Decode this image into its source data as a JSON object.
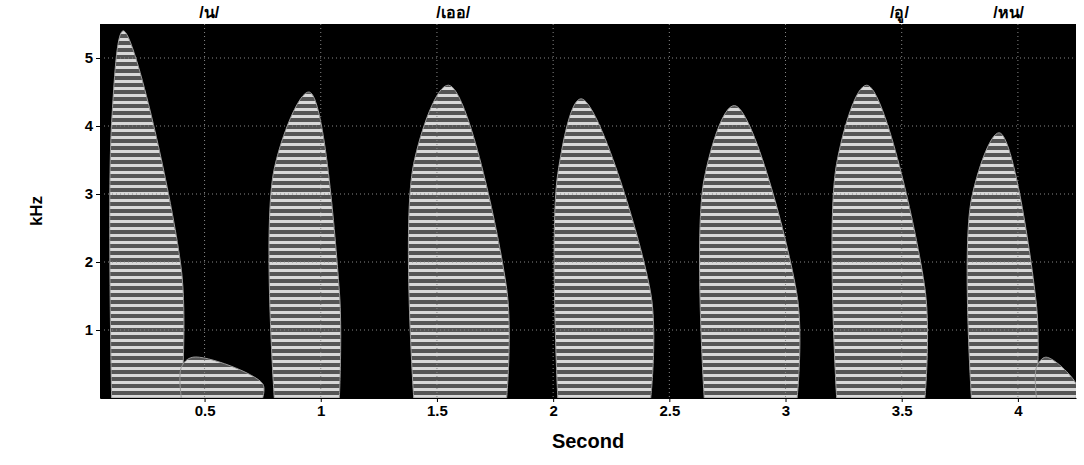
{
  "chart_data": {
    "type": "spectrogram",
    "x_label": "Second",
    "y_label": "kHz",
    "xlim": [
      0.05,
      4.25
    ],
    "ylim": [
      0,
      5.5
    ],
    "xticks": [
      0.5,
      1,
      1.5,
      2,
      2.5,
      3,
      3.5,
      4
    ],
    "yticks": [
      1,
      2,
      3,
      4,
      5
    ],
    "grid": true,
    "annotations": [
      {
        "text": "/น/",
        "x": 0.52
      },
      {
        "text": "/เออ/",
        "x": 1.57
      },
      {
        "text": "/อู/",
        "x": 3.49
      },
      {
        "text": "/หน/",
        "x": 3.96
      }
    ],
    "segments": [
      {
        "start": 0.1,
        "peak": 0.15,
        "end": 0.4,
        "top": 5.4
      },
      {
        "start": 0.4,
        "peak": 0.45,
        "end": 0.75,
        "top": 0.6
      },
      {
        "start": 0.8,
        "peak": 0.95,
        "end": 1.08,
        "top": 4.5
      },
      {
        "start": 1.4,
        "peak": 1.55,
        "end": 1.8,
        "top": 4.6
      },
      {
        "start": 2.02,
        "peak": 2.12,
        "end": 2.42,
        "top": 4.4
      },
      {
        "start": 2.65,
        "peak": 2.78,
        "end": 3.05,
        "top": 4.3
      },
      {
        "start": 3.22,
        "peak": 3.35,
        "end": 3.6,
        "top": 4.6
      },
      {
        "start": 3.8,
        "peak": 3.92,
        "end": 4.08,
        "top": 3.9
      },
      {
        "start": 4.08,
        "peak": 4.12,
        "end": 4.25,
        "top": 0.6
      }
    ]
  }
}
